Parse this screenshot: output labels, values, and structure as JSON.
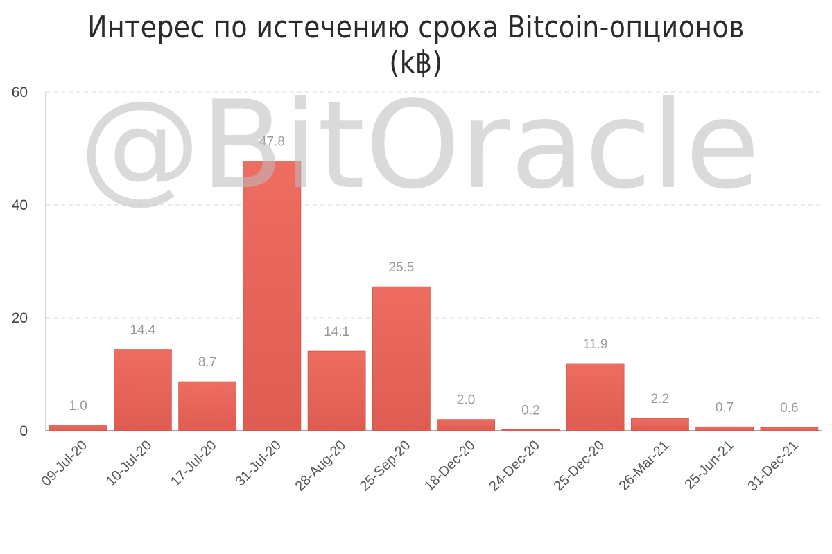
{
  "chart_data": {
    "type": "bar",
    "title": "Интерес по истечению срока Bitcoin-опционов (k฿)",
    "xlabel": "",
    "ylabel": "",
    "categories": [
      "09-Jul-20",
      "10-Jul-20",
      "17-Jul-20",
      "31-Jul-20",
      "28-Aug-20",
      "25-Sep-20",
      "18-Dec-20",
      "24-Dec-20",
      "25-Dec-20",
      "26-Mar-21",
      "25-Jun-21",
      "31-Dec-21"
    ],
    "values": [
      1.0,
      14.4,
      8.7,
      47.8,
      14.1,
      25.5,
      2.0,
      0.2,
      11.9,
      2.2,
      0.7,
      0.6
    ],
    "value_labels": [
      "1.0",
      "14.4",
      "8.7",
      "47.8",
      "14.1",
      "25.5",
      "2.0",
      "0.2",
      "11.9",
      "2.2",
      "0.7",
      "0.6"
    ],
    "y_ticks": [
      "0",
      "20",
      "40",
      "60"
    ],
    "ylim": [
      0,
      60
    ],
    "grid": true,
    "legend": "none",
    "bar_color": "#e8655a"
  },
  "watermark": "@BitOracle"
}
